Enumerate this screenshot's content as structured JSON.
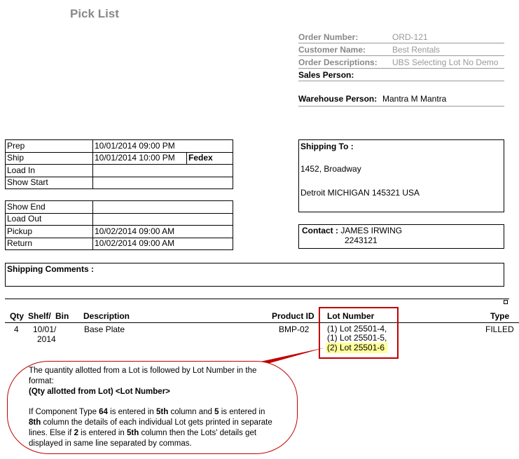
{
  "title": "Pick List",
  "order": {
    "order_number_label": "Order Number:",
    "order_number": "ORD-121",
    "customer_label": "Customer Name:",
    "customer": "Best Rentals",
    "desc_label": "Order Descriptions:",
    "desc": "UBS Selecting Lot No Demo",
    "sales_label": "Sales Person:",
    "sales": "",
    "warehouse_label": "Warehouse Person:",
    "warehouse": "Mantra M Mantra"
  },
  "dates1": [
    {
      "label": "Prep",
      "value": "10/01/2014 09:00 PM",
      "extra": ""
    },
    {
      "label": "Ship",
      "value": "10/01/2014 10:00 PM",
      "extra": "Fedex"
    },
    {
      "label": "Load In",
      "value": ""
    },
    {
      "label": "Show Start",
      "value": ""
    }
  ],
  "dates2": [
    {
      "label": "Show End",
      "value": ""
    },
    {
      "label": "Load Out",
      "value": ""
    },
    {
      "label": "Pickup",
      "value": "10/02/2014 09:00 AM"
    },
    {
      "label": "Return",
      "value": "10/02/2014 09:00 AM"
    }
  ],
  "shipping": {
    "label": "Shipping To :",
    "line1": "1452, Broadway",
    "line2": "Detroit MICHIGAN 145321 USA"
  },
  "contact": {
    "label": "Contact :",
    "name": "JAMES IRWING",
    "phone": "2243121"
  },
  "comments": {
    "label": "Shipping Comments :"
  },
  "table": {
    "headers": {
      "qty": "Qty",
      "shelf": "Shelf/",
      "bin": "Bin",
      "desc": "Description",
      "pid": "Product ID",
      "lot": "Lot Number",
      "type": "Type"
    },
    "row": {
      "qty": "4",
      "shelf1": "10/01/",
      "shelf2": "2014",
      "desc": "Base Plate",
      "pid": "BMP-02",
      "lot1": "(1) Lot 25501-4,",
      "lot2": "(1) Lot 25501-5,",
      "lot3": "(2) Lot 25501-6",
      "type": "FILLED"
    }
  },
  "callout": {
    "p1": "The quantity allotted from a Lot is followed by Lot Number in the format:",
    "p2": "(Qty allotted from Lot) <Lot Number>",
    "p3a": "If Component Type ",
    "p3b": "64",
    "p3c": " is entered in ",
    "p3d": "5th",
    "p3e": " column and ",
    "p3f": "5",
    "p3g": " is entered in ",
    "p3h": "8th",
    "p3i": " column the details of each individual Lot gets printed in separate lines. Else if ",
    "p3j": "2",
    "p3k": " is entered in ",
    "p3l": "5th",
    "p3m": " column then the Lots' details get displayed in same line separated by commas."
  },
  "colors": {
    "accent": "#c00000",
    "highlight": "#ffff99"
  }
}
